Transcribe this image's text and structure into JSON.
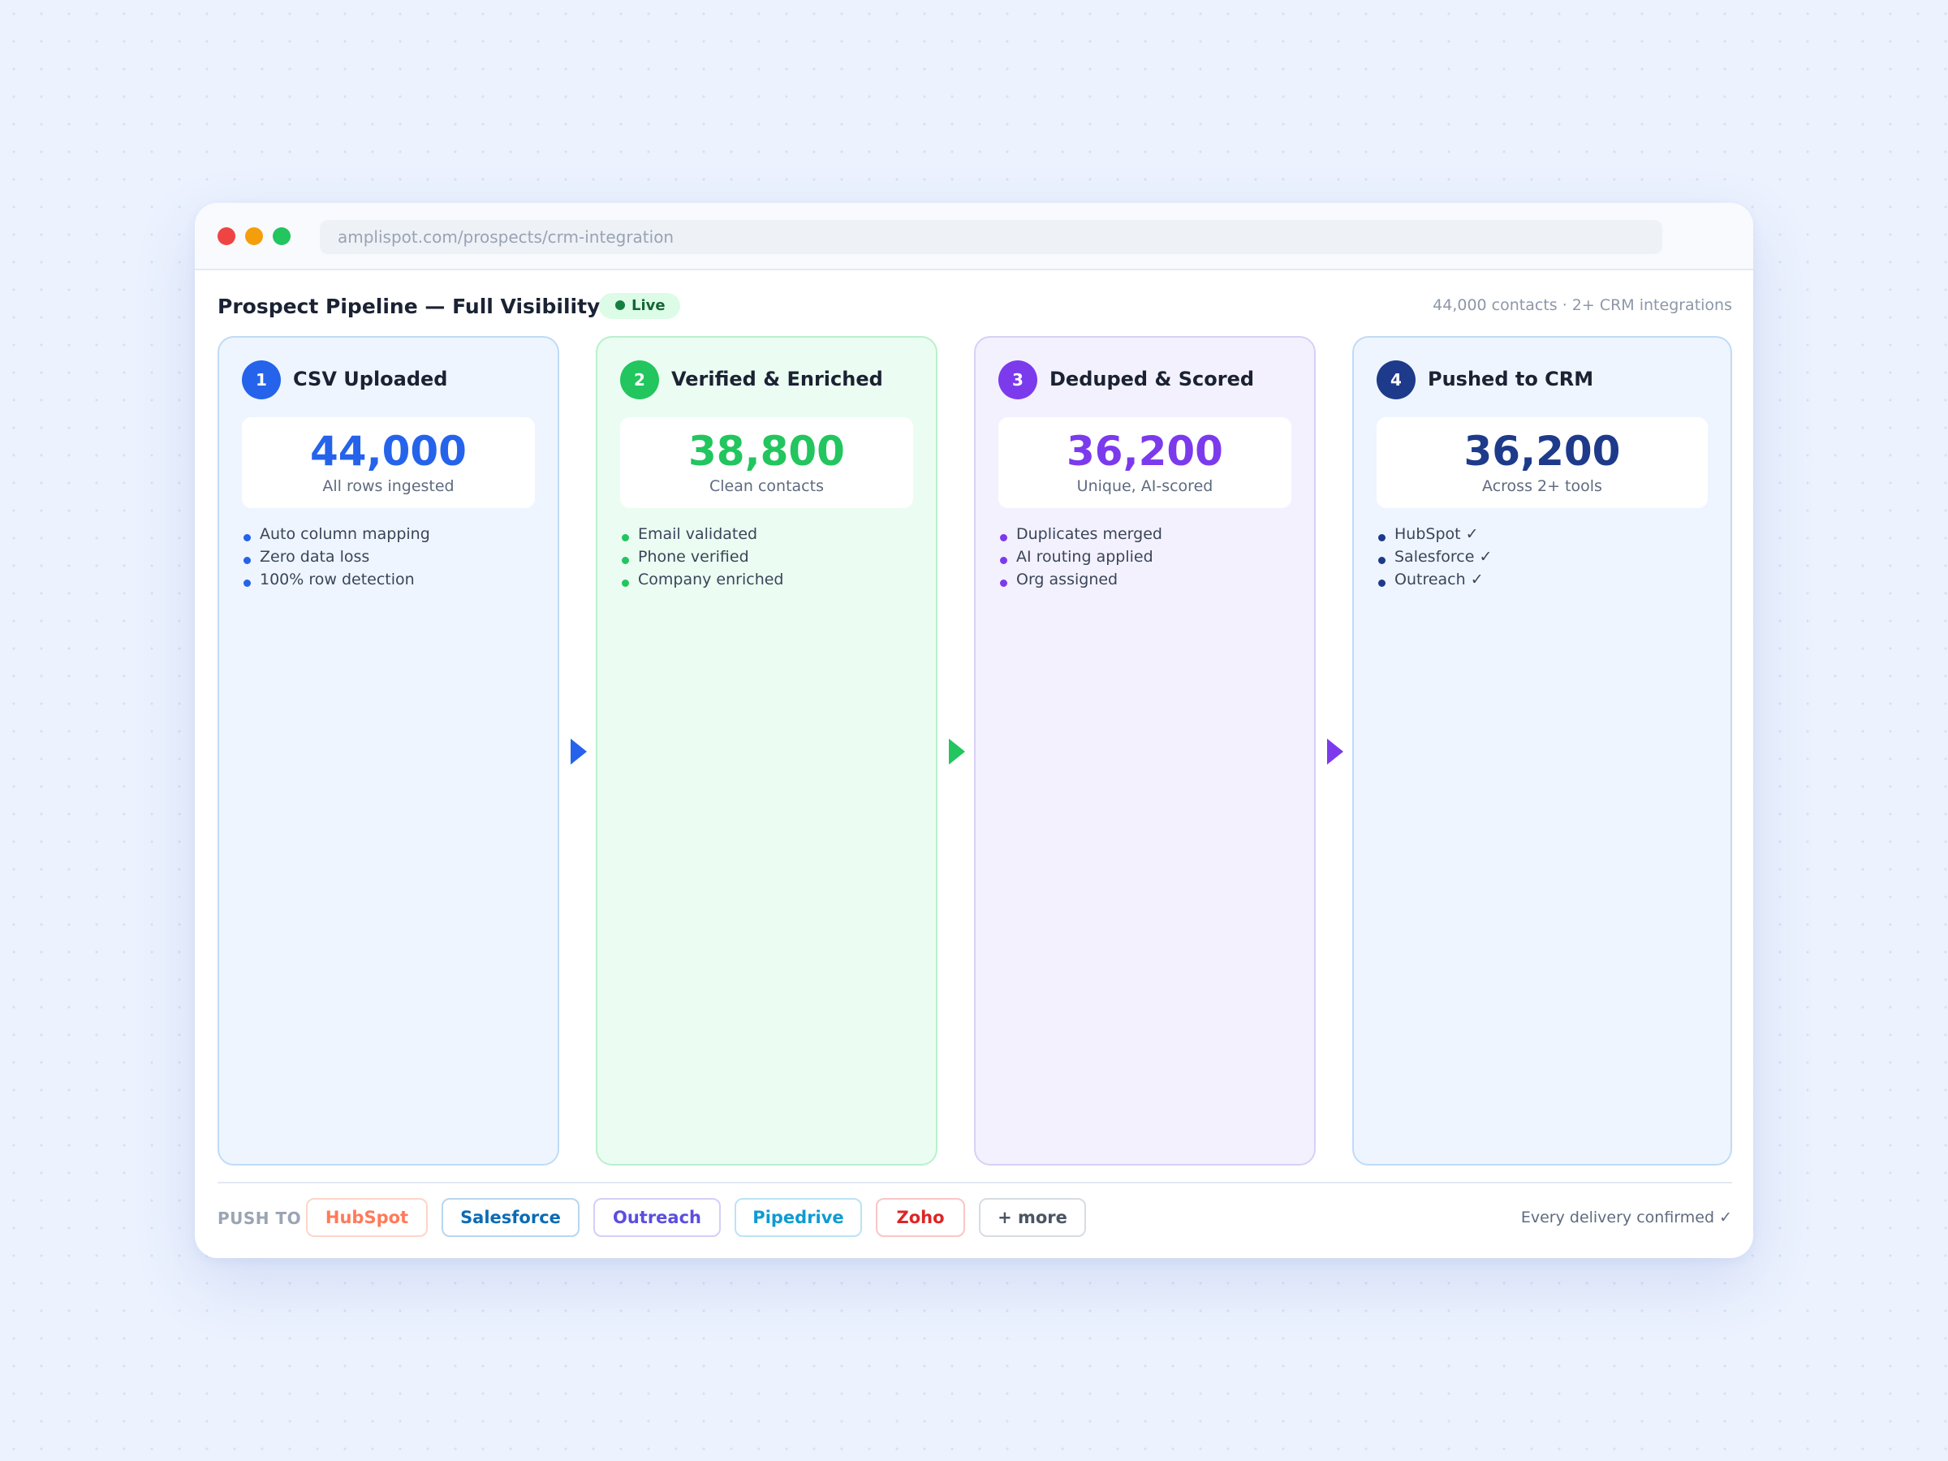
{
  "browser": {
    "url": "amplispot.com/prospects/crm-integration"
  },
  "header": {
    "title": "Prospect Pipeline — Full Visibility",
    "live_label": "Live",
    "summary": "44,000 contacts · 2+ CRM integrations"
  },
  "stages": [
    {
      "number": "1",
      "title": "CSV Uploaded",
      "value": "44,000",
      "value_label": "All rows ingested",
      "features": [
        "Auto column mapping",
        "Zero data loss",
        "100% row detection"
      ],
      "accent": "#2563eb",
      "background": "#eef5ff",
      "border": "#bfdbf7"
    },
    {
      "number": "2",
      "title": "Verified & Enriched",
      "value": "38,800",
      "value_label": "Clean contacts",
      "features": [
        "Email validated",
        "Phone verified",
        "Company enriched"
      ],
      "accent": "#22c55e",
      "background": "#ebfdf2",
      "border": "#b9f0cc"
    },
    {
      "number": "3",
      "title": "Deduped & Scored",
      "value": "36,200",
      "value_label": "Unique, AI-scored",
      "features": [
        "Duplicates merged",
        "AI routing applied",
        "Org assigned"
      ],
      "accent": "#7c3aed",
      "background": "#f3f1fe",
      "border": "#d8d0f5"
    },
    {
      "number": "4",
      "title": "Pushed to CRM",
      "value": "36,200",
      "value_label": "Across 2+ tools",
      "features": [
        "HubSpot ✓",
        "Salesforce ✓",
        "Outreach ✓"
      ],
      "accent": "#1e3a8a",
      "background": "#eef5ff",
      "border": "#bfdbf7"
    }
  ],
  "footer": {
    "push_label": "PUSH TO",
    "integrations": [
      {
        "label": "HubSpot",
        "color": "#ff7a59",
        "border": "#fdd5c9"
      },
      {
        "label": "Salesforce",
        "color": "#0b6bb5",
        "border": "#b8d6ef"
      },
      {
        "label": "Outreach",
        "color": "#5b4ee0",
        "border": "#d4cff7"
      },
      {
        "label": "Pipedrive",
        "color": "#0e9bd3",
        "border": "#bce3f4"
      },
      {
        "label": "Zoho",
        "color": "#dc2626",
        "border": "#f8c6c6"
      },
      {
        "label": "+ more",
        "color": "#4b5563",
        "border": "#d7dce3"
      }
    ],
    "delivery_note": "Every delivery confirmed ✓"
  }
}
